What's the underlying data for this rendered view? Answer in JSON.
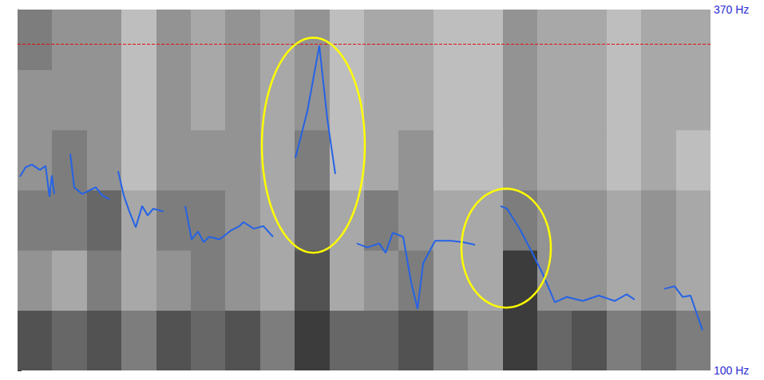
{
  "chart_data": {
    "type": "line",
    "color": "#2563e6",
    "x": [
      3,
      10,
      18,
      28,
      35,
      40,
      43,
      46,
      56,
      66,
      71,
      81,
      91,
      98,
      106,
      115,
      120,
      126,
      133,
      140,
      148,
      156,
      163,
      170,
      183,
      196,
      210,
      218,
      226,
      233,
      240,
      253,
      268,
      278,
      283,
      296,
      308,
      320,
      334,
      348,
      363,
      378,
      388,
      398,
      412,
      425,
      438,
      453,
      461,
      470,
      483,
      493,
      501,
      508,
      523,
      543,
      558,
      573,
      590,
      605,
      613,
      628,
      643,
      658,
      673,
      688,
      708,
      728,
      748,
      763,
      773,
      790,
      810,
      823,
      833,
      843,
      858
    ],
    "values": [
      245,
      252,
      254,
      250,
      253,
      230,
      246,
      232,
      null,
      262,
      237,
      232,
      235,
      237,
      231,
      228,
      null,
      249,
      231,
      219,
      207,
      223,
      216,
      221,
      219,
      null,
      223,
      198,
      204,
      196,
      200,
      198,
      205,
      208,
      211,
      206,
      208,
      200,
      null,
      259,
      294,
      343,
      288,
      247,
      null,
      195,
      192,
      195,
      188,
      203,
      200,
      166,
      146,
      180,
      197,
      197,
      196,
      194,
      null,
      223,
      221,
      207,
      190,
      172,
      151,
      155,
      152,
      156,
      152,
      157,
      153,
      null,
      161,
      163,
      155,
      156,
      130
    ],
    "xlim": [
      0,
      868
    ],
    "ylim": [
      100,
      370
    ],
    "yticks": [
      {
        "value": 100,
        "label": "100 Hz"
      },
      {
        "value": 370,
        "label": "370 Hz"
      }
    ],
    "tick_labels": "y",
    "grid": false,
    "reference_line": {
      "value": 344,
      "color": "#e01010",
      "line_style": "dashed"
    },
    "highlights": {
      "color": "#ffff00",
      "regions": [
        {
          "x": [
            306,
            435
          ],
          "y": [
            188,
            349
          ]
        },
        {
          "x": [
            556,
            668
          ],
          "y": [
            147,
            236
          ]
        }
      ]
    },
    "spectrogram": {
      "x_edges": [
        0,
        43,
        87,
        130,
        174,
        217,
        260,
        304,
        347,
        391,
        434,
        477,
        521,
        564,
        608,
        651,
        694,
        738,
        781,
        825,
        868
      ],
      "y_edges": [
        100,
        145,
        190,
        235,
        280,
        325,
        370
      ],
      "cells": [
        [
          0.8,
          0.7,
          0.8,
          0.6,
          0.8,
          0.7,
          0.8,
          0.6,
          0.9,
          0.7,
          0.7,
          0.8,
          0.6,
          0.5,
          0.9,
          0.7,
          0.8,
          0.6,
          0.7,
          0.6
        ],
        [
          0.5,
          0.4,
          0.6,
          0.4,
          0.5,
          0.6,
          0.5,
          0.4,
          0.8,
          0.4,
          0.5,
          0.6,
          0.4,
          0.4,
          0.9,
          0.5,
          0.5,
          0.4,
          0.5,
          0.4
        ],
        [
          0.6,
          0.6,
          0.7,
          0.4,
          0.6,
          0.6,
          0.5,
          0.4,
          0.7,
          0.4,
          0.6,
          0.5,
          0.4,
          0.4,
          0.6,
          0.5,
          0.5,
          0.4,
          0.5,
          0.4
        ],
        [
          0.5,
          0.6,
          0.5,
          0.3,
          0.5,
          0.5,
          0.5,
          0.4,
          0.6,
          0.3,
          0.4,
          0.5,
          0.3,
          0.3,
          0.5,
          0.4,
          0.4,
          0.3,
          0.4,
          0.3
        ],
        [
          0.5,
          0.5,
          0.5,
          0.3,
          0.5,
          0.4,
          0.5,
          0.4,
          0.5,
          0.3,
          0.4,
          0.4,
          0.3,
          0.3,
          0.5,
          0.4,
          0.4,
          0.3,
          0.4,
          0.4
        ],
        [
          0.6,
          0.5,
          0.5,
          0.3,
          0.5,
          0.4,
          0.5,
          0.4,
          0.5,
          0.3,
          0.4,
          0.4,
          0.3,
          0.3,
          0.5,
          0.4,
          0.4,
          0.3,
          0.4,
          0.4
        ]
      ]
    }
  }
}
